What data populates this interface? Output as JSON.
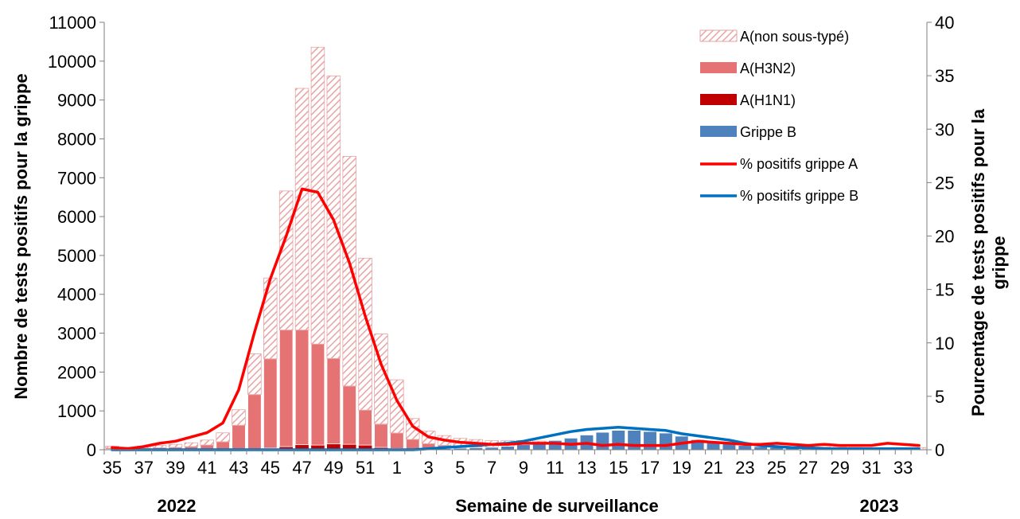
{
  "chart_data": {
    "type": "bar",
    "stacked": true,
    "xlabel": "Semaine de surveillance",
    "ylabel": "Nombre de tests positifs pour la grippe",
    "y2label": "Pourcentage de tests positifs pour la grippe",
    "year_labels": [
      "2022",
      "2023"
    ],
    "ylim": [
      0,
      11000
    ],
    "y2lim": [
      0,
      40
    ],
    "yticks": [
      0,
      1000,
      2000,
      3000,
      4000,
      5000,
      6000,
      7000,
      8000,
      9000,
      10000,
      11000
    ],
    "y2ticks": [
      0,
      5,
      10,
      15,
      20,
      25,
      30,
      35,
      40
    ],
    "x": [
      "35",
      "36",
      "37",
      "38",
      "39",
      "40",
      "41",
      "42",
      "43",
      "44",
      "45",
      "46",
      "47",
      "48",
      "49",
      "50",
      "51",
      "52",
      "1",
      "2",
      "3",
      "4",
      "5",
      "6",
      "7",
      "8",
      "9",
      "10",
      "11",
      "12",
      "13",
      "14",
      "15",
      "16",
      "17",
      "18",
      "19",
      "20",
      "21",
      "22",
      "23",
      "24",
      "25",
      "26",
      "27",
      "28",
      "29",
      "30",
      "31",
      "32",
      "33",
      "34"
    ],
    "xtick_labels": [
      "35",
      "37",
      "39",
      "41",
      "43",
      "45",
      "47",
      "49",
      "51",
      "1",
      "3",
      "5",
      "7",
      "9",
      "11",
      "13",
      "15",
      "17",
      "19",
      "21",
      "23",
      "25",
      "27",
      "29",
      "31",
      "33"
    ],
    "colors": {
      "a_unsubtyped": "#e8a3a3",
      "a_h3n2": "#e57373",
      "a_h1n1": "#c00000",
      "b": "#4f81bd",
      "pct_a": "#ff0000",
      "pct_b": "#0070c0"
    },
    "legend": {
      "position": "top-right",
      "entries": [
        "A(non sous-typé)",
        "A(H3N2)",
        "A(H1N1)",
        "Grippe B",
        "% positifs grippe A",
        "% positifs grippe B"
      ]
    },
    "series": [
      {
        "name": "A(H1N1)",
        "kind": "bar",
        "values": [
          0,
          0,
          0,
          0,
          0,
          0,
          0,
          5,
          10,
          20,
          40,
          80,
          130,
          120,
          150,
          140,
          120,
          60,
          30,
          15,
          8,
          5,
          4,
          3,
          2,
          2,
          2,
          2,
          2,
          2,
          2,
          2,
          2,
          2,
          2,
          2,
          2,
          2,
          2,
          2,
          2,
          2,
          2,
          2,
          2,
          2,
          2,
          2,
          2,
          2,
          2,
          2
        ]
      },
      {
        "name": "A(H3N2)",
        "kind": "bar",
        "values": [
          40,
          30,
          40,
          50,
          60,
          80,
          120,
          200,
          620,
          1400,
          2300,
          3000,
          2950,
          2600,
          2200,
          1500,
          900,
          600,
          400,
          250,
          150,
          110,
          90,
          80,
          70,
          60,
          55,
          50,
          50,
          45,
          45,
          40,
          40,
          40,
          35,
          35,
          35,
          30,
          30,
          30,
          25,
          25,
          25,
          20,
          20,
          20,
          20,
          15,
          15,
          15,
          15,
          15
        ]
      },
      {
        "name": "A(non sous-typé)",
        "kind": "bar",
        "values": [
          50,
          40,
          50,
          60,
          80,
          100,
          130,
          230,
          400,
          1050,
          2080,
          3580,
          6220,
          7640,
          7270,
          5910,
          3910,
          2320,
          1370,
          540,
          320,
          250,
          200,
          180,
          160,
          170,
          180,
          170,
          180,
          170,
          160,
          150,
          140,
          120,
          100,
          100,
          100,
          90,
          90,
          80,
          60,
          60,
          60,
          50,
          50,
          50,
          40,
          40,
          30,
          30,
          30,
          40
        ]
      },
      {
        "name": "Grippe B",
        "kind": "bar",
        "values": [
          10,
          10,
          10,
          10,
          10,
          10,
          10,
          10,
          10,
          10,
          10,
          10,
          10,
          10,
          10,
          10,
          10,
          10,
          10,
          20,
          20,
          30,
          40,
          50,
          60,
          90,
          130,
          180,
          240,
          300,
          380,
          450,
          500,
          500,
          470,
          430,
          350,
          260,
          200,
          160,
          110,
          80,
          60,
          50,
          40,
          40,
          30,
          30,
          20,
          20,
          20,
          20
        ]
      },
      {
        "name": "% positifs grippe A",
        "kind": "line",
        "axis": "right",
        "values": [
          0.2,
          0.1,
          0.3,
          0.6,
          0.8,
          1.2,
          1.6,
          2.5,
          5.6,
          11.0,
          16.0,
          20.0,
          24.4,
          24.1,
          21.5,
          17.5,
          12.5,
          8.0,
          4.6,
          2.2,
          1.2,
          0.9,
          0.7,
          0.6,
          0.5,
          0.5,
          0.6,
          0.6,
          0.6,
          0.5,
          0.6,
          0.4,
          0.5,
          0.4,
          0.4,
          0.4,
          0.6,
          0.8,
          0.7,
          0.6,
          0.5,
          0.5,
          0.6,
          0.5,
          0.4,
          0.5,
          0.4,
          0.4,
          0.4,
          0.6,
          0.5,
          0.4
        ]
      },
      {
        "name": "% positifs grippe B",
        "kind": "line",
        "axis": "right",
        "values": [
          0,
          0,
          0,
          0,
          0,
          0,
          0,
          0,
          0,
          0,
          0,
          0,
          0,
          0,
          0,
          0,
          0,
          0,
          0,
          0,
          0.1,
          0.2,
          0.3,
          0.4,
          0.5,
          0.6,
          0.8,
          1.1,
          1.4,
          1.7,
          1.9,
          2.0,
          2.1,
          2.0,
          1.9,
          1.8,
          1.5,
          1.3,
          1.1,
          0.9,
          0.6,
          0.4,
          0.3,
          0.2,
          0.2,
          0.1,
          0.1,
          0.1,
          0.1,
          0.1,
          0.1,
          0.1
        ]
      }
    ]
  }
}
